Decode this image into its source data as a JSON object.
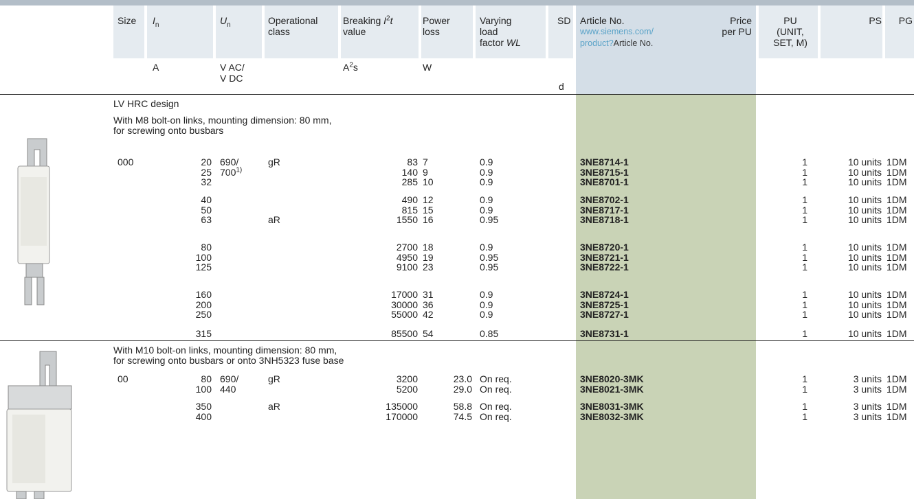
{
  "header": {
    "size": "Size",
    "in": {
      "symbol": "I",
      "sub": "n",
      "unit": "A"
    },
    "un": {
      "symbol": "U",
      "sub": "n",
      "unit": [
        "V AC/",
        "V DC"
      ]
    },
    "class": [
      "Operational",
      "class"
    ],
    "breaking": {
      "line1": "Breaking",
      "symbol": "I",
      "sup": "2",
      "symbol2": "t",
      "line2": "value",
      "unit": "A",
      "unit_sup": "2",
      "unit2": "s"
    },
    "loss": {
      "label": [
        "Power",
        "loss"
      ],
      "unit": "W"
    },
    "wl": {
      "label": [
        "Varying",
        "load"
      ],
      "line3": "factor",
      "symbol": "WL"
    },
    "sd": {
      "label": "SD",
      "unit": "d"
    },
    "article": {
      "label": "Article No.",
      "link": [
        "www.siemens.com/",
        "product?"
      ],
      "link_tail": "Article No."
    },
    "price": [
      "Price",
      "per PU"
    ],
    "pu": [
      "PU",
      "(UNIT,",
      "SET, M)"
    ],
    "ps": "PS",
    "pg": "PG"
  },
  "sections": [
    {
      "title": "LV HRC design",
      "subtitle": [
        "With M8 bolt-on links, mounting dimension: 80 mm,",
        "for screwing onto busbars"
      ],
      "groups": [
        {
          "rows": [
            {
              "size": "000",
              "in": "20",
              "un": "690/",
              "class": "gR",
              "i2t": "83",
              "loss": "7",
              "wl": "0.9",
              "article": "3NE8714-1",
              "pu": "1",
              "ps": "10 units",
              "pg": "1DM"
            },
            {
              "in": "25",
              "un": "700",
              "un_note": "1)",
              "i2t": "140",
              "loss": "9",
              "wl": "0.9",
              "article": "3NE8715-1",
              "pu": "1",
              "ps": "10 units",
              "pg": "1DM"
            },
            {
              "in": "32",
              "i2t": "285",
              "loss": "10",
              "wl": "0.9",
              "article": "3NE8701-1",
              "pu": "1",
              "ps": "10 units",
              "pg": "1DM"
            }
          ]
        },
        {
          "rows": [
            {
              "in": "40",
              "i2t": "490",
              "loss": "12",
              "wl": "0.9",
              "article": "3NE8702-1",
              "pu": "1",
              "ps": "10 units",
              "pg": "1DM"
            },
            {
              "in": "50",
              "i2t": "815",
              "loss": "15",
              "wl": "0.9",
              "article": "3NE8717-1",
              "pu": "1",
              "ps": "10 units",
              "pg": "1DM"
            },
            {
              "in": "63",
              "class": "aR",
              "i2t": "1550",
              "loss": "16",
              "wl": "0.95",
              "article": "3NE8718-1",
              "pu": "1",
              "ps": "10 units",
              "pg": "1DM"
            }
          ]
        },
        {
          "rows": [
            {
              "in": "80",
              "i2t": "2700",
              "loss": "18",
              "wl": "0.9",
              "article": "3NE8720-1",
              "pu": "1",
              "ps": "10 units",
              "pg": "1DM"
            },
            {
              "in": "100",
              "i2t": "4950",
              "loss": "19",
              "wl": "0.95",
              "article": "3NE8721-1",
              "pu": "1",
              "ps": "10 units",
              "pg": "1DM"
            },
            {
              "in": "125",
              "i2t": "9100",
              "loss": "23",
              "wl": "0.95",
              "article": "3NE8722-1",
              "pu": "1",
              "ps": "10 units",
              "pg": "1DM"
            }
          ]
        },
        {
          "rows": [
            {
              "in": "160",
              "i2t": "17000",
              "loss": "31",
              "wl": "0.9",
              "article": "3NE8724-1",
              "pu": "1",
              "ps": "10 units",
              "pg": "1DM"
            },
            {
              "in": "200",
              "i2t": "30000",
              "loss": "36",
              "wl": "0.9",
              "article": "3NE8725-1",
              "pu": "1",
              "ps": "10 units",
              "pg": "1DM"
            },
            {
              "in": "250",
              "i2t": "55000",
              "loss": "42",
              "wl": "0.9",
              "article": "3NE8727-1",
              "pu": "1",
              "ps": "10 units",
              "pg": "1DM"
            }
          ]
        },
        {
          "rows": [
            {
              "in": "315",
              "i2t": "85500",
              "loss": "54",
              "wl": "0.85",
              "article": "3NE8731-1",
              "pu": "1",
              "ps": "10 units",
              "pg": "1DM"
            }
          ]
        }
      ]
    },
    {
      "subtitle": [
        "With M10 bolt-on links, mounting dimension: 80 mm,",
        "for screwing onto busbars or onto 3NH5323 fuse base"
      ],
      "groups": [
        {
          "rows": [
            {
              "size": "00",
              "in": "80",
              "un": "690/",
              "class": "gR",
              "i2t": "3200",
              "loss": "23.0",
              "wl": "On req.",
              "article": "3NE8020-3MK",
              "pu": "1",
              "ps": "3 units",
              "pg": "1DM"
            },
            {
              "in": "100",
              "un": "440",
              "i2t": "5200",
              "loss": "29.0",
              "wl": "On req.",
              "article": "3NE8021-3MK",
              "pu": "1",
              "ps": "3 units",
              "pg": "1DM"
            }
          ]
        },
        {
          "rows": [
            {
              "in": "350",
              "class": "aR",
              "i2t": "135000",
              "loss": "58.8",
              "wl": "On req.",
              "article": "3NE8031-3MK",
              "pu": "1",
              "ps": "3 units",
              "pg": "1DM"
            },
            {
              "in": "400",
              "i2t": "170000",
              "loss": "74.5",
              "wl": "On req.",
              "article": "3NE8032-3MK",
              "pu": "1",
              "ps": "3 units",
              "pg": "1DM"
            }
          ]
        }
      ]
    }
  ]
}
